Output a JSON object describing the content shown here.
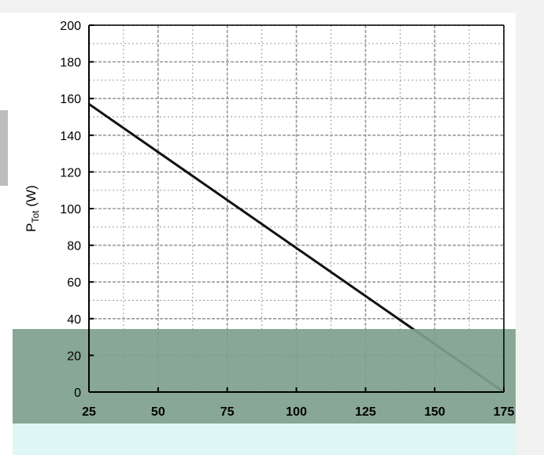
{
  "chart_data": {
    "type": "line",
    "title": "",
    "xlabel": "",
    "ylabel": "P_Tot (W)",
    "ylabel_main": "P",
    "ylabel_sub": "Tot",
    "ylabel_unit": " (W)",
    "xlim": [
      25,
      175
    ],
    "ylim": [
      0,
      200
    ],
    "x_ticks": [
      25,
      50,
      75,
      100,
      125,
      150,
      175
    ],
    "y_ticks": [
      0,
      20,
      40,
      60,
      80,
      100,
      120,
      140,
      160,
      180,
      200
    ],
    "x_tick_labels": [
      "25",
      "50",
      "75",
      "100",
      "125",
      "150",
      "175"
    ],
    "y_tick_labels": [
      "0",
      "20",
      "40",
      "60",
      "80",
      "100",
      "120",
      "140",
      "160",
      "180",
      "200"
    ],
    "grid": true,
    "series": [
      {
        "x": [
          25,
          175
        ],
        "y": [
          157,
          0
        ]
      }
    ]
  },
  "colors": {
    "line": "#111111",
    "grid": "#9a9a9a",
    "axis": "#000000",
    "overlay": "#7f9f8c",
    "panel": "#f2f2f2",
    "highlight": "#dff7f4"
  }
}
